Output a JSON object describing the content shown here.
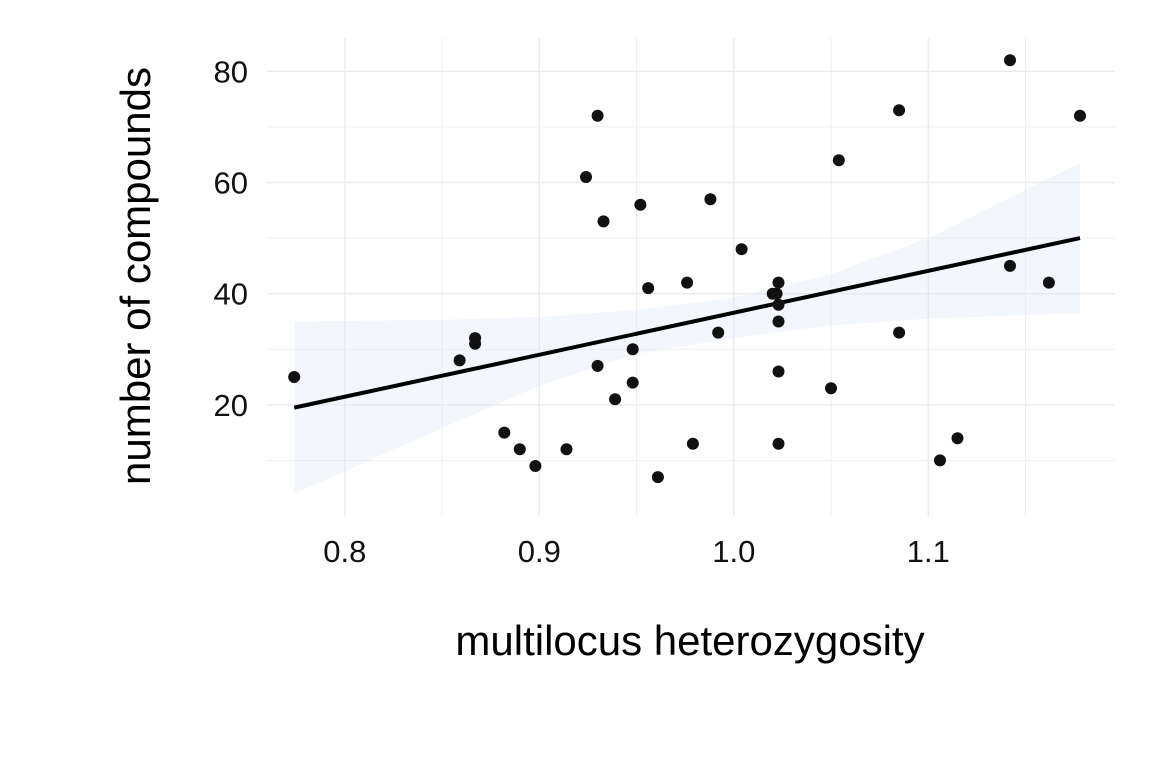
{
  "chart_data": {
    "type": "scatter",
    "title": "",
    "xlabel": "multilocus heterozygosity",
    "ylabel": "number of compounds",
    "xlim": [
      0.76,
      1.196
    ],
    "ylim": [
      0,
      86
    ],
    "x_ticks": [
      0.8,
      0.9,
      1.0,
      1.1
    ],
    "x_tick_labels": [
      "0.8",
      "0.9",
      "1.0",
      "1.1"
    ],
    "y_ticks": [
      20,
      40,
      60,
      80
    ],
    "y_tick_labels": [
      "20",
      "40",
      "60",
      "80"
    ],
    "grid": true,
    "legend": "none",
    "colors": {
      "points": "#111111",
      "fit_line": "#000000",
      "ci_band": "#dde9f3",
      "grid": "#ebebeb"
    },
    "points": [
      {
        "x": 0.774,
        "y": 25
      },
      {
        "x": 0.859,
        "y": 28
      },
      {
        "x": 0.867,
        "y": 31
      },
      {
        "x": 0.867,
        "y": 32
      },
      {
        "x": 0.882,
        "y": 15
      },
      {
        "x": 0.89,
        "y": 12
      },
      {
        "x": 0.898,
        "y": 9
      },
      {
        "x": 0.914,
        "y": 12
      },
      {
        "x": 0.924,
        "y": 61
      },
      {
        "x": 0.93,
        "y": 72
      },
      {
        "x": 0.93,
        "y": 27
      },
      {
        "x": 0.933,
        "y": 53
      },
      {
        "x": 0.939,
        "y": 21
      },
      {
        "x": 0.948,
        "y": 30
      },
      {
        "x": 0.948,
        "y": 24
      },
      {
        "x": 0.952,
        "y": 56
      },
      {
        "x": 0.956,
        "y": 41
      },
      {
        "x": 0.961,
        "y": 7
      },
      {
        "x": 0.976,
        "y": 42
      },
      {
        "x": 0.979,
        "y": 13
      },
      {
        "x": 0.988,
        "y": 57
      },
      {
        "x": 0.992,
        "y": 33
      },
      {
        "x": 1.004,
        "y": 48
      },
      {
        "x": 1.02,
        "y": 40
      },
      {
        "x": 1.022,
        "y": 40
      },
      {
        "x": 1.023,
        "y": 42
      },
      {
        "x": 1.023,
        "y": 38
      },
      {
        "x": 1.023,
        "y": 35
      },
      {
        "x": 1.023,
        "y": 26
      },
      {
        "x": 1.023,
        "y": 13
      },
      {
        "x": 1.05,
        "y": 23
      },
      {
        "x": 1.054,
        "y": 64
      },
      {
        "x": 1.085,
        "y": 73
      },
      {
        "x": 1.085,
        "y": 33
      },
      {
        "x": 1.106,
        "y": 10
      },
      {
        "x": 1.115,
        "y": 14
      },
      {
        "x": 1.142,
        "y": 82
      },
      {
        "x": 1.142,
        "y": 45
      },
      {
        "x": 1.162,
        "y": 42
      },
      {
        "x": 1.178,
        "y": 72
      }
    ],
    "fit_line": {
      "x": [
        0.774,
        1.178
      ],
      "y": [
        19.5,
        50
      ]
    },
    "confidence_band": {
      "x": [
        0.774,
        0.85,
        0.9,
        0.95,
        1.0,
        1.05,
        1.1,
        1.178
      ],
      "upper": [
        35,
        35.3,
        35.8,
        37.1,
        39.3,
        43.5,
        50.0,
        63.5
      ],
      "lower": [
        4,
        15.8,
        23.4,
        29.2,
        32.0,
        34.3,
        35.5,
        36.5
      ]
    }
  }
}
